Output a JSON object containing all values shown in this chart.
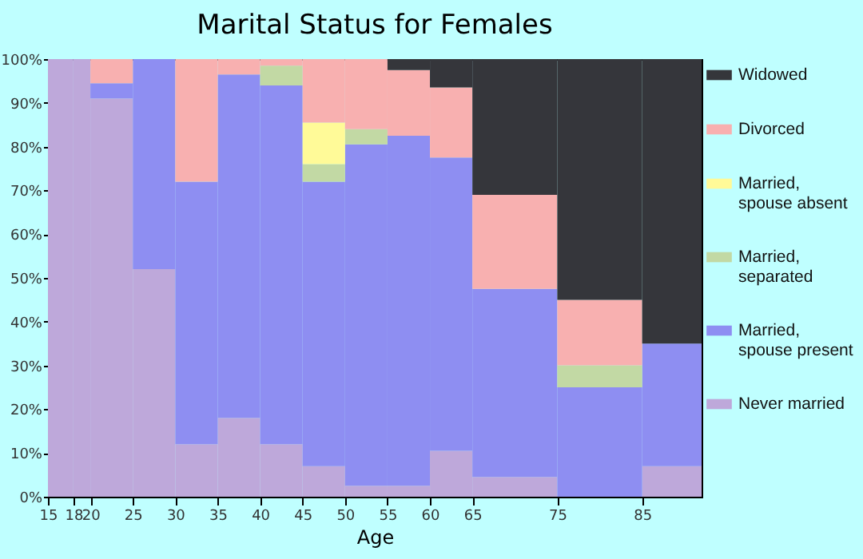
{
  "chart_data": {
    "type": "bar",
    "stacked": true,
    "title": "Marital Status for Females",
    "xlabel": "Age",
    "x": [
      16.5,
      19,
      22.5,
      27.5,
      32.5,
      37.5,
      42.5,
      47.5,
      52.5,
      57.5,
      62.5,
      70,
      80,
      88.5
    ],
    "xlim": [
      15,
      92
    ],
    "xticks": [
      15,
      18,
      20,
      25,
      30,
      35,
      40,
      45,
      50,
      55,
      60,
      65,
      75,
      85
    ],
    "ylim": [
      0,
      100
    ],
    "yticks": [
      {
        "value": 0,
        "label": "0%"
      },
      {
        "value": 10,
        "label": "10%"
      },
      {
        "value": 20,
        "label": "20%"
      },
      {
        "value": 30,
        "label": "30%"
      },
      {
        "value": 40,
        "label": "40%"
      },
      {
        "value": 50,
        "label": "50%"
      },
      {
        "value": 60,
        "label": "60%"
      },
      {
        "value": 70,
        "label": "70%"
      },
      {
        "value": 80,
        "label": "80%"
      },
      {
        "value": 90,
        "label": "90%"
      },
      {
        "value": 100,
        "label": "100%"
      }
    ],
    "grid": false,
    "legend": "right",
    "series": [
      {
        "name": "Never married",
        "color": "#bea8da",
        "values": [
          100,
          100,
          91,
          52,
          12,
          18,
          12,
          7,
          2.5,
          2.5,
          10.5,
          4.5,
          0,
          7
        ]
      },
      {
        "name": "Married, spouse present",
        "color": "#8e8ef2",
        "values": [
          0,
          0,
          3.5,
          48,
          60,
          78.5,
          82,
          65,
          78,
          80,
          67,
          43,
          25,
          28
        ]
      },
      {
        "name": "Married, separated",
        "color": "#c2d9a4",
        "values": [
          0,
          0,
          0,
          0,
          0,
          0,
          4.5,
          4,
          3.5,
          0,
          0,
          0,
          5,
          0
        ]
      },
      {
        "name": "Married, spouse absent",
        "color": "#fffa98",
        "values": [
          0,
          0,
          0,
          0,
          0,
          0,
          0,
          9.5,
          0,
          0,
          0,
          0,
          0,
          0
        ]
      },
      {
        "name": "Divorced",
        "color": "#f8b0b0",
        "values": [
          0,
          0,
          5.5,
          0,
          28,
          3.5,
          1.5,
          14.5,
          16,
          15,
          16,
          21.5,
          15,
          0
        ]
      },
      {
        "name": "Widowed",
        "color": "#35363b",
        "values": [
          0,
          0,
          0,
          0,
          0,
          0,
          0,
          0,
          0,
          2.5,
          6.5,
          31,
          55,
          65
        ]
      }
    ]
  }
}
